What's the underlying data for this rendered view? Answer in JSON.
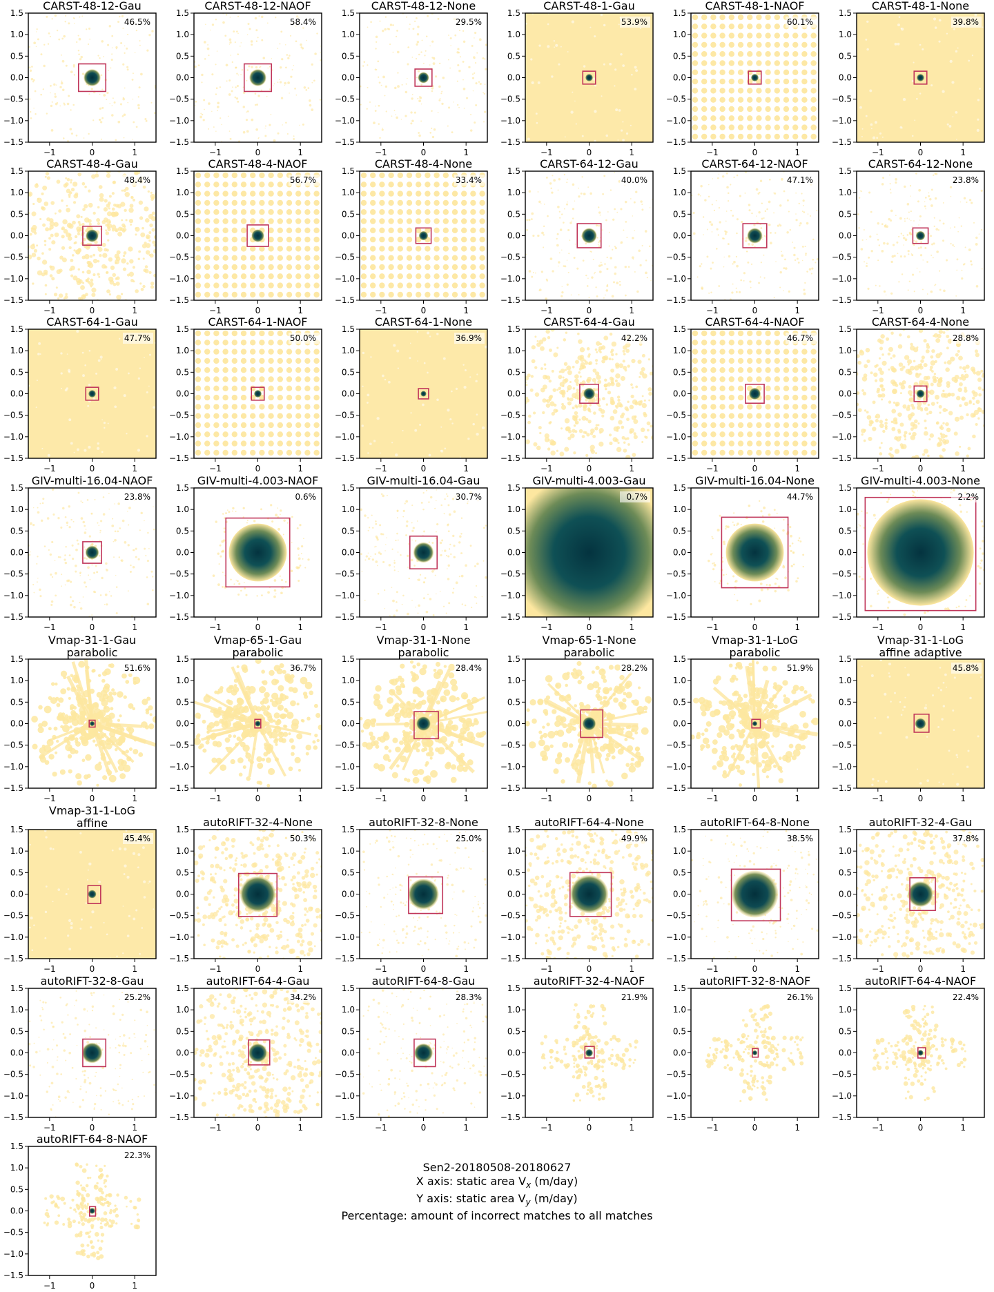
{
  "colors": {
    "scatter": "#fde7a0",
    "core": "#07414f",
    "mid": "#6d8b57",
    "box": "#c0365a"
  },
  "caption": {
    "line1": "Sen2-20180508-20180627",
    "line2_prefix": "X axis: static area V",
    "line2_sub": "x",
    "line2_suffix": " (m/day)",
    "line3_prefix": "Y axis: static area V",
    "line3_sub": "y",
    "line3_suffix": " (m/day)",
    "line4": "Percentage: amount of incorrect matches to all matches"
  },
  "chart_data": {
    "type": "heatmap",
    "description_axes": {
      "xlim": [
        -1.5,
        1.5
      ],
      "ylim": [
        -1.5,
        1.5
      ],
      "xticks": [
        -1,
        0,
        1
      ],
      "yticks": [
        1.5,
        1.0,
        0.5,
        0.0,
        -0.5,
        -1.0,
        -1.5
      ],
      "xtick_labels": [
        "−1",
        "0",
        "1"
      ],
      "ytick_labels": [
        "1.5",
        "1.0",
        "0.5",
        "0.0",
        "−0.5",
        "−1.0",
        "−1.5"
      ]
    },
    "panels": [
      {
        "title": [
          "CARST-48-12-Gau"
        ],
        "pct": "46.5%",
        "style": "sparse",
        "core": 0.2,
        "box": [
          -0.32,
          0.32,
          -0.32,
          0.32
        ]
      },
      {
        "title": [
          "CARST-48-12-NAOF"
        ],
        "pct": "58.4%",
        "style": "sparse",
        "core": 0.2,
        "box": [
          -0.32,
          0.32,
          -0.32,
          0.32
        ]
      },
      {
        "title": [
          "CARST-48-12-None"
        ],
        "pct": "29.5%",
        "style": "sparse",
        "core": 0.13,
        "box": [
          -0.2,
          0.2,
          -0.2,
          0.2
        ]
      },
      {
        "title": [
          "CARST-48-1-Gau"
        ],
        "pct": "53.9%",
        "style": "full",
        "core": 0.09,
        "box": [
          -0.15,
          0.15,
          -0.15,
          0.15
        ]
      },
      {
        "title": [
          "CARST-48-1-NAOF"
        ],
        "pct": "60.1%",
        "style": "grid",
        "core": 0.09,
        "box": [
          -0.15,
          0.15,
          -0.15,
          0.15
        ]
      },
      {
        "title": [
          "CARST-48-1-None"
        ],
        "pct": "39.8%",
        "style": "full",
        "core": 0.09,
        "box": [
          -0.15,
          0.15,
          -0.15,
          0.15
        ]
      },
      {
        "title": [
          "CARST-48-4-Gau"
        ],
        "pct": "48.4%",
        "style": "dense",
        "core": 0.15,
        "box": [
          -0.22,
          0.22,
          -0.22,
          0.22
        ]
      },
      {
        "title": [
          "CARST-48-4-NAOF"
        ],
        "pct": "56.7%",
        "style": "grid",
        "core": 0.15,
        "box": [
          -0.25,
          0.25,
          -0.25,
          0.25
        ]
      },
      {
        "title": [
          "CARST-48-4-None"
        ],
        "pct": "33.4%",
        "style": "grid",
        "core": 0.11,
        "box": [
          -0.18,
          0.18,
          -0.18,
          0.18
        ]
      },
      {
        "title": [
          "CARST-64-12-Gau"
        ],
        "pct": "40.0%",
        "style": "sparse",
        "core": 0.18,
        "box": [
          -0.28,
          0.28,
          -0.28,
          0.28
        ]
      },
      {
        "title": [
          "CARST-64-12-NAOF"
        ],
        "pct": "47.1%",
        "style": "sparse",
        "core": 0.18,
        "box": [
          -0.28,
          0.28,
          -0.28,
          0.28
        ]
      },
      {
        "title": [
          "CARST-64-12-None"
        ],
        "pct": "23.8%",
        "style": "sparse",
        "core": 0.11,
        "box": [
          -0.18,
          0.18,
          -0.18,
          0.18
        ]
      },
      {
        "title": [
          "CARST-64-1-Gau"
        ],
        "pct": "47.7%",
        "style": "full",
        "core": 0.09,
        "box": [
          -0.15,
          0.15,
          -0.15,
          0.15
        ]
      },
      {
        "title": [
          "CARST-64-1-NAOF"
        ],
        "pct": "50.0%",
        "style": "grid",
        "core": 0.09,
        "box": [
          -0.15,
          0.15,
          -0.15,
          0.15
        ]
      },
      {
        "title": [
          "CARST-64-1-None"
        ],
        "pct": "36.9%",
        "style": "full",
        "core": 0.07,
        "box": [
          -0.12,
          0.12,
          -0.12,
          0.12
        ]
      },
      {
        "title": [
          "CARST-64-4-Gau"
        ],
        "pct": "42.2%",
        "style": "dense",
        "core": 0.14,
        "box": [
          -0.22,
          0.22,
          -0.22,
          0.22
        ]
      },
      {
        "title": [
          "CARST-64-4-NAOF"
        ],
        "pct": "46.7%",
        "style": "grid",
        "core": 0.14,
        "box": [
          -0.22,
          0.22,
          -0.22,
          0.22
        ]
      },
      {
        "title": [
          "CARST-64-4-None"
        ],
        "pct": "28.8%",
        "style": "dense",
        "core": 0.1,
        "box": [
          -0.15,
          0.15,
          -0.18,
          0.18
        ]
      },
      {
        "title": [
          "GIV-multi-16.04-NAOF"
        ],
        "pct": "23.8%",
        "style": "sparse",
        "core": 0.16,
        "box": [
          -0.22,
          0.22,
          -0.25,
          0.25
        ]
      },
      {
        "title": [
          "GIV-multi-4.003-NAOF"
        ],
        "pct": "0.6%",
        "style": "blob",
        "core": 0.68,
        "box": [
          -0.75,
          0.75,
          -0.8,
          0.8
        ]
      },
      {
        "title": [
          "GIV-multi-16.04-Gau"
        ],
        "pct": "30.7%",
        "style": "sparse",
        "core": 0.24,
        "box": [
          -0.32,
          0.32,
          -0.38,
          0.38
        ]
      },
      {
        "title": [
          "GIV-multi-4.003-Gau"
        ],
        "pct": "0.7%",
        "style": "huge",
        "core": 1.55,
        "box": [
          -1.6,
          1.6,
          -1.6,
          1.6
        ]
      },
      {
        "title": [
          "GIV-multi-16.04-None"
        ],
        "pct": "44.7%",
        "style": "blob",
        "core": 0.68,
        "box": [
          -0.78,
          0.78,
          -0.82,
          0.82
        ]
      },
      {
        "title": [
          "GIV-multi-4.003-None"
        ],
        "pct": "2.2%",
        "style": "blob",
        "core": 1.25,
        "box": [
          -1.3,
          1.3,
          -1.35,
          1.28
        ]
      },
      {
        "title": [
          "Vmap-31-1-Gau",
          "parabolic"
        ],
        "pct": "51.6%",
        "style": "star",
        "core": 0.06,
        "box": [
          -0.07,
          0.07,
          -0.08,
          0.08
        ]
      },
      {
        "title": [
          "Vmap-65-1-Gau",
          "parabolic"
        ],
        "pct": "36.7%",
        "style": "star",
        "core": 0.07,
        "box": [
          -0.07,
          0.07,
          -0.1,
          0.1
        ]
      },
      {
        "title": [
          "Vmap-31-1-None",
          "parabolic"
        ],
        "pct": "28.4%",
        "style": "star",
        "core": 0.17,
        "box": [
          -0.22,
          0.35,
          -0.35,
          0.28
        ]
      },
      {
        "title": [
          "Vmap-65-1-None",
          "parabolic"
        ],
        "pct": "28.2%",
        "style": "star",
        "core": 0.16,
        "box": [
          -0.2,
          0.32,
          -0.32,
          0.32
        ]
      },
      {
        "title": [
          "Vmap-31-1-LoG",
          "parabolic"
        ],
        "pct": "51.9%",
        "style": "star",
        "core": 0.06,
        "box": [
          -0.07,
          0.13,
          -0.1,
          0.1
        ]
      },
      {
        "title": [
          "Vmap-31-1-LoG",
          "affine adaptive"
        ],
        "pct": "45.8%",
        "style": "full",
        "core": 0.13,
        "box": [
          -0.15,
          0.2,
          -0.2,
          0.22
        ]
      },
      {
        "title": [
          "Vmap-31-1-LoG",
          "affine"
        ],
        "pct": "45.4%",
        "style": "full",
        "core": 0.1,
        "box": [
          -0.1,
          0.2,
          -0.22,
          0.2
        ]
      },
      {
        "title": [
          "autoRIFT-32-4-None"
        ],
        "pct": "50.3%",
        "style": "dense",
        "core": 0.42,
        "box": [
          -0.45,
          0.45,
          -0.52,
          0.48
        ]
      },
      {
        "title": [
          "autoRIFT-32-8-None"
        ],
        "pct": "25.0%",
        "style": "sparse",
        "core": 0.36,
        "box": [
          -0.35,
          0.45,
          -0.45,
          0.4
        ]
      },
      {
        "title": [
          "autoRIFT-64-4-None"
        ],
        "pct": "49.9%",
        "style": "dense",
        "core": 0.45,
        "box": [
          -0.45,
          0.52,
          -0.52,
          0.5
        ]
      },
      {
        "title": [
          "autoRIFT-64-8-None"
        ],
        "pct": "38.5%",
        "style": "sparse",
        "core": 0.55,
        "box": [
          -0.55,
          0.6,
          -0.62,
          0.58
        ]
      },
      {
        "title": [
          "autoRIFT-32-4-Gau"
        ],
        "pct": "37.8%",
        "style": "dense",
        "core": 0.3,
        "box": [
          -0.25,
          0.35,
          -0.38,
          0.38
        ]
      },
      {
        "title": [
          "autoRIFT-32-8-Gau"
        ],
        "pct": "25.2%",
        "style": "sparse",
        "core": 0.24,
        "box": [
          -0.22,
          0.32,
          -0.32,
          0.32
        ]
      },
      {
        "title": [
          "autoRIFT-64-4-Gau"
        ],
        "pct": "34.2%",
        "style": "dense",
        "core": 0.22,
        "box": [
          -0.22,
          0.28,
          -0.28,
          0.3
        ]
      },
      {
        "title": [
          "autoRIFT-64-8-Gau"
        ],
        "pct": "28.3%",
        "style": "sparse",
        "core": 0.22,
        "box": [
          -0.22,
          0.28,
          -0.32,
          0.32
        ]
      },
      {
        "title": [
          "autoRIFT-32-4-NAOF"
        ],
        "pct": "21.9%",
        "style": "cross",
        "core": 0.09,
        "box": [
          -0.1,
          0.12,
          -0.12,
          0.15
        ]
      },
      {
        "title": [
          "autoRIFT-32-8-NAOF"
        ],
        "pct": "26.1%",
        "style": "cross",
        "core": 0.06,
        "box": [
          -0.06,
          0.08,
          -0.1,
          0.1
        ]
      },
      {
        "title": [
          "autoRIFT-64-4-NAOF"
        ],
        "pct": "22.4%",
        "style": "cross",
        "core": 0.07,
        "box": [
          -0.06,
          0.12,
          -0.12,
          0.12
        ]
      },
      {
        "title": [
          "autoRIFT-64-8-NAOF"
        ],
        "pct": "22.3%",
        "style": "cross",
        "core": 0.07,
        "box": [
          -0.06,
          0.08,
          -0.12,
          0.1
        ]
      }
    ]
  }
}
